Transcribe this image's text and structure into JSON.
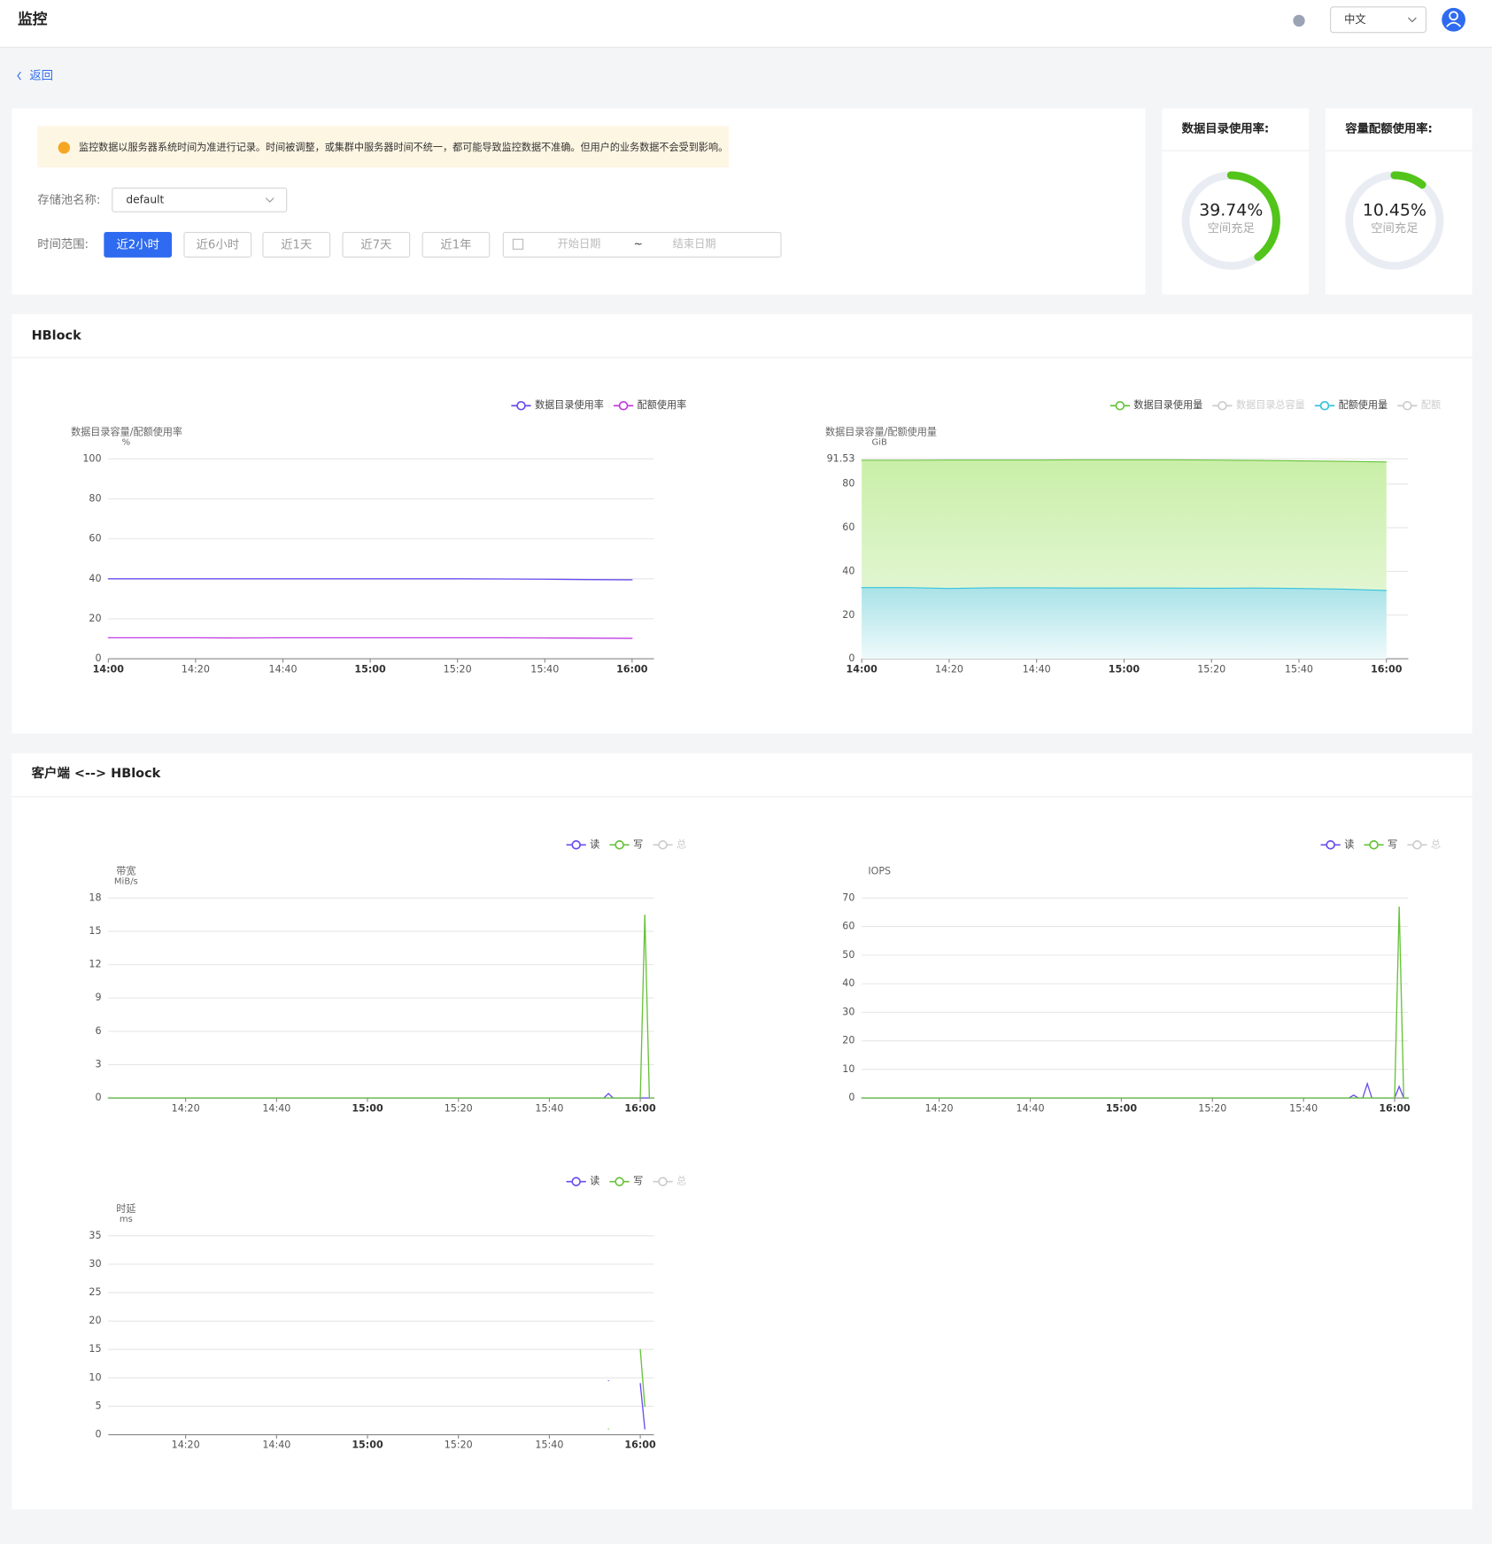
{
  "header": {
    "title": "监控",
    "language": "中文"
  },
  "back": "返回",
  "notice": "监控数据以服务器系统时间为准进行记录。时间被调整，或集群中服务器时间不统一，都可能导致监控数据不准确。但用户的业务数据不会受到影响。",
  "form": {
    "pool_label": "存储池名称:",
    "pool_value": "default",
    "range_label": "时间范围:",
    "ranges": [
      "近2小时",
      "近6小时",
      "近1天",
      "近7天",
      "近1年"
    ],
    "active_range": 0,
    "start_placeholder": "开始日期",
    "separator": "~",
    "end_placeholder": "结束日期"
  },
  "gauges": [
    {
      "title": "数据目录使用率:",
      "value": 39.74,
      "value_label": "39.74%",
      "status": "空间充足",
      "color": "#52c41a"
    },
    {
      "title": "容量配额使用率:",
      "value": 10.45,
      "value_label": "10.45%",
      "status": "空间充足",
      "color": "#52c41a"
    }
  ],
  "sections": [
    "HBlock",
    "客户端 <--> HBlock"
  ],
  "chart_data": [
    {
      "type": "line",
      "y_label": "数据目录容量/配额使用率",
      "y_unit": "%",
      "x": [
        "14:00",
        "14:10",
        "14:20",
        "14:30",
        "14:40",
        "14:50",
        "15:00",
        "15:10",
        "15:20",
        "15:30",
        "15:40",
        "15:50",
        "16:00"
      ],
      "series": [
        {
          "name": "数据目录使用率",
          "color": "#6a4cf0",
          "values": [
            40.0,
            40.0,
            40.0,
            40.0,
            40.0,
            40.0,
            40.0,
            40.0,
            40.0,
            39.9,
            39.8,
            39.6,
            39.5
          ]
        },
        {
          "name": "配额使用率",
          "color": "#c23de0",
          "values": [
            10.5,
            10.5,
            10.5,
            10.4,
            10.5,
            10.5,
            10.5,
            10.5,
            10.5,
            10.5,
            10.4,
            10.3,
            10.2
          ]
        }
      ],
      "xlim": [
        "14:00",
        "16:05"
      ],
      "xticks": [
        "14:00",
        "14:20",
        "14:40",
        "15:00",
        "15:20",
        "15:40",
        "16:00"
      ],
      "ylim": [
        0,
        100
      ],
      "yticks": [
        0,
        20,
        40,
        60,
        80,
        100
      ],
      "grid": true
    },
    {
      "type": "area",
      "y_label": "数据目录容量/配额使用量",
      "y_unit": "GiB",
      "x": [
        "14:00",
        "14:10",
        "14:20",
        "14:30",
        "14:40",
        "14:50",
        "15:00",
        "15:10",
        "15:20",
        "15:30",
        "15:40",
        "15:50",
        "16:00"
      ],
      "series": [
        {
          "name": "数据目录使用量",
          "color": "#67c23a",
          "values": [
            90.9,
            90.9,
            91.0,
            91.0,
            91.0,
            91.1,
            91.1,
            91.1,
            91.0,
            90.8,
            90.6,
            90.4,
            90.1
          ]
        },
        {
          "name": "数据目录总容量",
          "color": "#cccccc",
          "hidden": true
        },
        {
          "name": "配额使用量",
          "color": "#36c3dc",
          "values": [
            32.6,
            32.6,
            32.2,
            32.5,
            32.5,
            32.4,
            32.4,
            32.4,
            32.3,
            32.4,
            32.2,
            31.9,
            31.3
          ]
        },
        {
          "name": "配额",
          "color": "#cccccc",
          "hidden": true
        }
      ],
      "xlim": [
        "14:00",
        "16:05"
      ],
      "xticks": [
        "14:00",
        "14:20",
        "14:40",
        "15:00",
        "15:20",
        "15:40",
        "16:00"
      ],
      "ylim": [
        0,
        91.53
      ],
      "yticks": [
        0,
        20,
        40,
        60,
        80,
        91.53
      ],
      "grid": true
    },
    {
      "type": "line",
      "y_label": "带宽",
      "y_unit": "MiB/s",
      "x": [
        "14:03",
        "15:40",
        "15:52",
        "15:53",
        "15:54",
        "15:59",
        "16:00",
        "16:01",
        "16:02",
        "16:03"
      ],
      "series": [
        {
          "name": "读",
          "color": "#6a4cf0",
          "values": [
            0,
            0,
            0,
            0.4,
            0,
            0,
            0,
            0,
            0,
            0
          ]
        },
        {
          "name": "写",
          "color": "#67c23a",
          "values": [
            0,
            0,
            0,
            0,
            0,
            0,
            0,
            16.5,
            0,
            0
          ]
        },
        {
          "name": "总",
          "color": "#cccccc",
          "hidden": true
        }
      ],
      "xlim": [
        "14:03",
        "16:03"
      ],
      "xticks": [
        "14:20",
        "14:40",
        "15:00",
        "15:20",
        "15:40",
        "16:00"
      ],
      "ylim": [
        0,
        18
      ],
      "yticks": [
        0,
        3,
        6,
        9,
        12,
        15,
        18
      ],
      "grid": true
    },
    {
      "type": "line",
      "y_label": "IOPS",
      "x": [
        "14:03",
        "15:50",
        "15:51",
        "15:52",
        "15:53",
        "15:54",
        "15:55",
        "16:00",
        "16:01",
        "16:02",
        "16:03"
      ],
      "series": [
        {
          "name": "读",
          "color": "#6a4cf0",
          "values": [
            0,
            0,
            1,
            0,
            0,
            5,
            0,
            0,
            4,
            0,
            0
          ]
        },
        {
          "name": "写",
          "color": "#67c23a",
          "values": [
            0,
            0,
            0,
            0,
            0,
            0,
            0,
            0,
            67,
            0,
            0
          ]
        },
        {
          "name": "总",
          "color": "#cccccc",
          "hidden": true
        }
      ],
      "xlim": [
        "14:03",
        "16:03"
      ],
      "xticks": [
        "14:20",
        "14:40",
        "15:00",
        "15:20",
        "15:40",
        "16:00"
      ],
      "ylim": [
        0,
        70
      ],
      "yticks": [
        0,
        10,
        20,
        30,
        40,
        50,
        60,
        70
      ],
      "grid": true
    },
    {
      "type": "line",
      "y_label": "时延",
      "y_unit": "ms",
      "x": [
        "15:53",
        "15:59",
        "16:00",
        "16:01"
      ],
      "series": [
        {
          "name": "读",
          "color": "#6a4cf0",
          "values": [
            9.5,
            null,
            9,
            1
          ]
        },
        {
          "name": "写",
          "color": "#67c23a",
          "values": [
            1,
            null,
            15,
            5
          ]
        },
        {
          "name": "总",
          "color": "#cccccc",
          "hidden": true
        }
      ],
      "xlim": [
        "14:03",
        "16:03"
      ],
      "xticks": [
        "14:20",
        "14:40",
        "15:00",
        "15:20",
        "15:40",
        "16:00"
      ],
      "ylim": [
        0,
        35
      ],
      "yticks": [
        0,
        5,
        10,
        15,
        20,
        25,
        30,
        35
      ],
      "grid": true
    }
  ]
}
